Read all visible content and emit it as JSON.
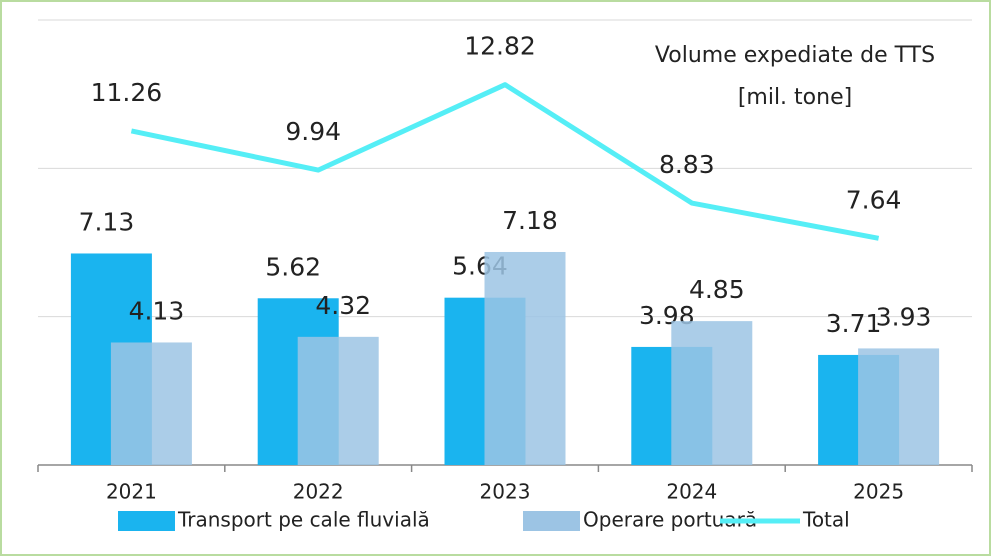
{
  "chart_data": {
    "type": "bar_line",
    "title": "Volume expediate de TTS",
    "subtitle": "[mil. tone]",
    "categories": [
      "2021",
      "2022",
      "2023",
      "2024",
      "2025"
    ],
    "series": [
      {
        "name": "Transport pe cale fluvială",
        "color": "#1ab4ef",
        "type": "bar",
        "values": [
          7.13,
          5.62,
          5.64,
          3.98,
          3.71
        ]
      },
      {
        "name": "Operare portuară",
        "color": "#9cc4e4",
        "type": "bar",
        "values": [
          4.13,
          4.32,
          7.18,
          4.85,
          3.93
        ]
      },
      {
        "name": "Total",
        "color": "#55eef6",
        "type": "line",
        "values": [
          11.26,
          9.94,
          12.82,
          8.83,
          7.64
        ]
      }
    ],
    "ylim": [
      0,
      15
    ],
    "yticks": [
      0,
      5,
      10,
      15
    ],
    "show_ytick_labels": false,
    "grid": true,
    "legend": "bottom"
  }
}
